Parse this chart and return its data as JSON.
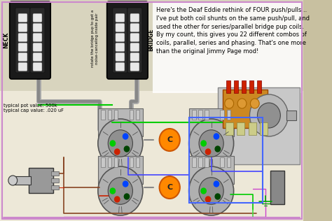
{
  "bg_color": "#c8c0a0",
  "wiring_bg": "#f0ede0",
  "title_text": "Here's the Deaf Eddie rethink of FOUR push/pulls...\nI've put both coil shunts on the same push/pull, and\nused the other for series/parallel bridge pup coils.\nBy my count, this gives you 22 different combos of\ncoils, parallel, series and phasing. That's one more\nthan the original Jimmy Page mod!",
  "label_neck": "NECK",
  "label_bridge": "BRIDGE",
  "label_rotate": "rotate the bridge pup to get a\nnoise-canceling inside pair",
  "label_pot": "typical pot value: 500k\ntypical cap value: .020 uF",
  "wire_colors": {
    "green": "#00cc00",
    "blue": "#4444ff",
    "red": "#cc2200",
    "brown": "#884422",
    "gray": "#888888",
    "orange": "#ff8800",
    "purple": "#cc44cc",
    "teal": "#00aaaa",
    "lime": "#44dd44",
    "dark_green": "#005500",
    "pink": "#ff88aa",
    "yellow": "#ddcc00"
  },
  "border_color": "#cc88cc",
  "title_box_bg": "#ffffff",
  "photo_bg": "#d8d8d8"
}
